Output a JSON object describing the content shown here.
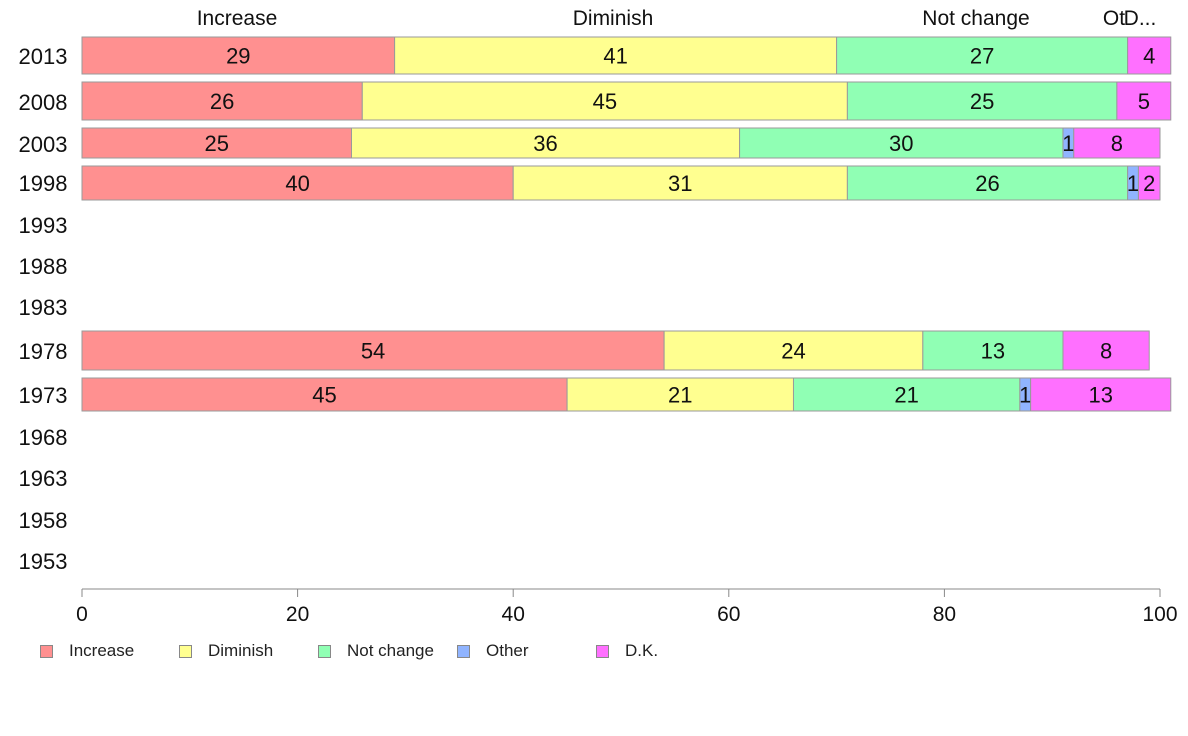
{
  "chart_data": {
    "type": "bar",
    "orientation": "horizontal",
    "stacked": true,
    "categories": [
      "2013",
      "2008",
      "2003",
      "1998",
      "1993",
      "1988",
      "1983",
      "1978",
      "1973",
      "1968",
      "1963",
      "1958",
      "1953"
    ],
    "series": [
      {
        "name": "Increase",
        "color": "#ff9090",
        "values": [
          29,
          26,
          25,
          40,
          null,
          null,
          null,
          54,
          45,
          null,
          null,
          null,
          null
        ]
      },
      {
        "name": "Diminish",
        "color": "#ffff90",
        "values": [
          41,
          45,
          36,
          31,
          null,
          null,
          null,
          24,
          21,
          null,
          null,
          null,
          null
        ]
      },
      {
        "name": "Not change",
        "color": "#90ffb4",
        "values": [
          27,
          25,
          30,
          26,
          null,
          null,
          null,
          13,
          21,
          null,
          null,
          null,
          null
        ]
      },
      {
        "name": "Other",
        "color": "#90b4ff",
        "values": [
          0,
          0,
          1,
          1,
          null,
          null,
          null,
          0,
          1,
          null,
          null,
          null,
          null
        ]
      },
      {
        "name": "D.K.",
        "color": "#ff70ff",
        "values": [
          4,
          5,
          8,
          2,
          null,
          null,
          null,
          8,
          13,
          null,
          null,
          null,
          null
        ]
      }
    ],
    "top_labels": [
      "Increase",
      "Diminish",
      "Not change",
      "Ot",
      "D..."
    ],
    "xlim": [
      0,
      100
    ],
    "xticks": [
      "0",
      "20",
      "40",
      "60",
      "80",
      "100"
    ],
    "grid": false,
    "legend_position": "bottom-left"
  }
}
